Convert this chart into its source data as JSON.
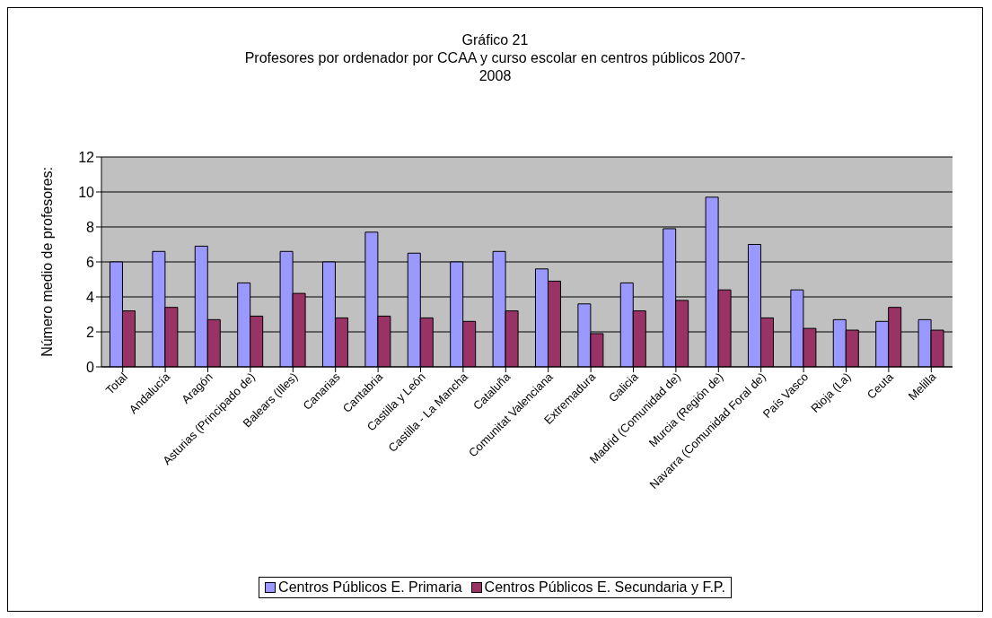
{
  "chart_data": {
    "type": "bar",
    "title": "Gráfico 21",
    "subtitle": "Profesores por ordenador por CCAA y curso escolar en centros públicos 2007-\n2008",
    "ylabel": "Número medio de profesores:",
    "categories": [
      "Total",
      "Andalucía",
      "Aragón",
      "Asturias (Principado de)",
      "Balears (Illes)",
      "Canarias",
      "Cantabria",
      "Castilla y León",
      "Castilla - La Mancha",
      "Cataluña",
      "Comunitat Valenciana",
      "Extremadura",
      "Galicia",
      "Madrid (Comunidad de)",
      "Murcia (Región de)",
      "Navarra (Comunidad Foral de)",
      "País Vasco",
      "Rioja (La)",
      "Ceuta",
      "Melilla"
    ],
    "series": [
      {
        "name": "Centros Públicos E. Primaria",
        "color": "#9999ff",
        "values": [
          6.0,
          6.6,
          6.9,
          4.8,
          6.6,
          6.0,
          7.7,
          6.5,
          6.0,
          6.6,
          5.6,
          3.6,
          4.8,
          7.9,
          9.7,
          7.0,
          4.4,
          2.7,
          2.6,
          2.7
        ]
      },
      {
        "name": "Centros Públicos E. Secundaria y F.P.",
        "color": "#993366",
        "values": [
          3.2,
          3.4,
          2.7,
          2.9,
          4.2,
          2.8,
          2.9,
          2.8,
          2.6,
          3.2,
          4.9,
          1.9,
          3.2,
          3.8,
          4.4,
          2.8,
          2.2,
          2.1,
          3.4,
          2.1
        ]
      }
    ],
    "ylim": [
      0,
      12
    ],
    "yticks": [
      0,
      2,
      4,
      6,
      8,
      10,
      12
    ],
    "grid": "y",
    "legend": "bottom"
  }
}
